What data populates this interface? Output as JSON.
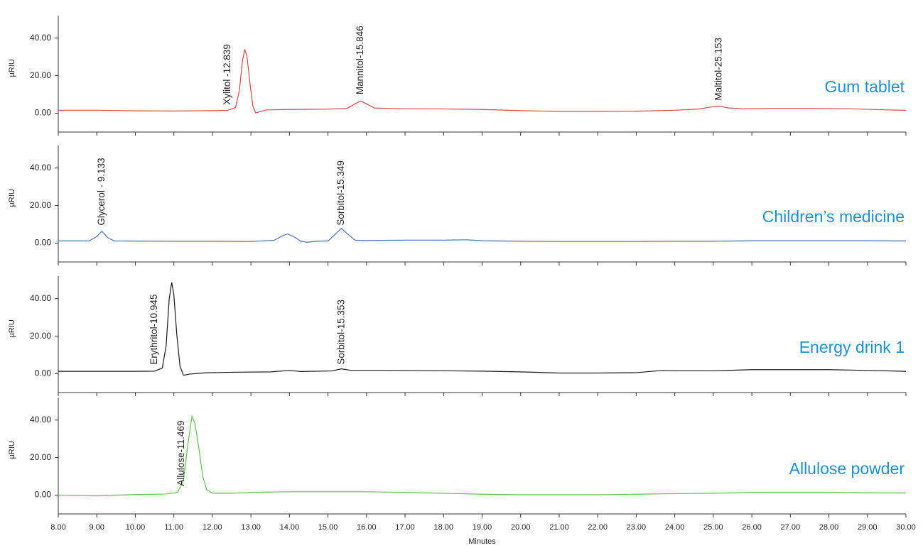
{
  "chart_data": [
    {
      "type": "line",
      "title": "Gum tablet",
      "y_label": "µRIU",
      "color": "#d9474a",
      "xlim": [
        8,
        30
      ],
      "ylim": [
        -10,
        52
      ],
      "yticks": [
        {
          "value": 40,
          "label": "40.00"
        },
        {
          "value": 20,
          "label": "20.00"
        },
        {
          "value": 0,
          "label": "0.00"
        }
      ],
      "x": [
        8,
        9,
        10,
        11,
        12,
        12.4,
        12.6,
        12.7,
        12.78,
        12.84,
        12.9,
        12.98,
        13.05,
        13.12,
        13.2,
        13.4,
        14,
        15,
        15.5,
        15.7,
        15.85,
        16,
        16.2,
        16.6,
        17,
        18,
        19,
        20,
        21,
        22,
        23,
        24,
        24.6,
        24.9,
        25.15,
        25.4,
        25.8,
        26.5,
        27.5,
        28.5,
        29.5,
        30
      ],
      "values": [
        1.6,
        1.6,
        1.3,
        1.2,
        1.4,
        1.6,
        3,
        12,
        28,
        34,
        30,
        15,
        4,
        0.2,
        0.6,
        1.8,
        2,
        2.2,
        2.6,
        5,
        6.5,
        5,
        2.8,
        2.6,
        2.4,
        2.3,
        2,
        1.4,
        1.0,
        1.0,
        1.1,
        1.6,
        2.2,
        3.2,
        3.8,
        2.8,
        2.4,
        2.6,
        2.6,
        2.4,
        1.8,
        1.6
      ],
      "annotations": [
        {
          "text": "Xylitol -12.839",
          "x": 12.4,
          "y": 4.5
        },
        {
          "text": "Mannitol-15.846",
          "x": 15.846,
          "y": 10
        },
        {
          "text": "Maltitol-25.153",
          "x": 25.153,
          "y": 6.8
        }
      ]
    },
    {
      "type": "line",
      "title": "Children’s medicine",
      "y_label": "µRIU",
      "color": "#4f6fb3",
      "xlim": [
        8,
        30
      ],
      "ylim": [
        -10,
        52
      ],
      "yticks": [
        {
          "value": 40,
          "label": "40.00"
        },
        {
          "value": 20,
          "label": "20.00"
        },
        {
          "value": 0,
          "label": "0.00"
        }
      ],
      "x": [
        8,
        8.8,
        9.0,
        9.13,
        9.28,
        9.45,
        10,
        11,
        12,
        13,
        13.6,
        13.85,
        13.95,
        14.1,
        14.3,
        14.45,
        14.7,
        15,
        15.15,
        15.35,
        15.5,
        15.7,
        16,
        17,
        18,
        18.6,
        19,
        20,
        21,
        22,
        23,
        24,
        25,
        26,
        27,
        28,
        29,
        30
      ],
      "values": [
        1.2,
        1.2,
        3.5,
        6.4,
        3,
        1.2,
        1.1,
        1.0,
        1.0,
        0.9,
        1.5,
        4.2,
        4.9,
        3.6,
        1.0,
        0.5,
        1.0,
        1.2,
        4,
        7.9,
        5,
        1.6,
        1.4,
        1.6,
        1.6,
        1.8,
        1.3,
        1.0,
        0.9,
        0.9,
        0.9,
        1.0,
        1.0,
        1.3,
        1.3,
        1.3,
        1.3,
        1.2
      ],
      "annotations": [
        {
          "text": "Glycerol - 9.133",
          "x": 9.133,
          "y": 9.4
        },
        {
          "text": "Sorbitol-15.349",
          "x": 15.349,
          "y": 9.4
        }
      ]
    },
    {
      "type": "line",
      "title": "Energy drink 1",
      "y_label": "µRIU",
      "color": "#1a1a1a",
      "xlim": [
        8,
        30
      ],
      "ylim": [
        -10,
        52
      ],
      "yticks": [
        {
          "value": 40,
          "label": "40.00"
        },
        {
          "value": 20,
          "label": "20.00"
        },
        {
          "value": 0,
          "label": "0.00"
        }
      ],
      "x": [
        8,
        9,
        10,
        10.5,
        10.7,
        10.8,
        10.88,
        10.945,
        11.0,
        11.08,
        11.16,
        11.25,
        11.4,
        11.8,
        12.5,
        13.5,
        14,
        14.3,
        15.1,
        15.35,
        15.6,
        16.5,
        18,
        19,
        20,
        21,
        22,
        23,
        23.7,
        24,
        25,
        26,
        27,
        28,
        29,
        30
      ],
      "values": [
        1.3,
        1.3,
        1.3,
        1.4,
        3,
        15,
        40,
        48.7,
        42,
        20,
        4,
        -0.8,
        -0.2,
        0.5,
        0.8,
        1.0,
        1.8,
        1.2,
        1.5,
        2.6,
        1.8,
        1.8,
        1.6,
        1.4,
        1.0,
        0.4,
        0.4,
        0.6,
        1.8,
        1.6,
        1.6,
        2.2,
        2.2,
        2.2,
        1.8,
        1.3
      ],
      "annotations": [
        {
          "text": "Erythritol-10.945",
          "x": 10.5,
          "y": 4.9
        },
        {
          "text": "Sorbitol-15.353",
          "x": 15.353,
          "y": 4.9
        }
      ]
    },
    {
      "type": "line",
      "title": "Allulose powder",
      "y_label": "µRIU",
      "x_label": "Minutes",
      "color": "#66bb55",
      "xlim": [
        8,
        30
      ],
      "ylim": [
        -10,
        52
      ],
      "yticks": [
        {
          "value": 40,
          "label": "40.00"
        },
        {
          "value": 20,
          "label": "20.00"
        },
        {
          "value": 0,
          "label": "0.00"
        }
      ],
      "xticks": [
        {
          "value": 8,
          "label": "8.00"
        },
        {
          "value": 9,
          "label": "9.00"
        },
        {
          "value": 10,
          "label": "10.00"
        },
        {
          "value": 11,
          "label": "11.00"
        },
        {
          "value": 12,
          "label": "12.00"
        },
        {
          "value": 13,
          "label": "13.00"
        },
        {
          "value": 14,
          "label": "14.00"
        },
        {
          "value": 15,
          "label": "15.00"
        },
        {
          "value": 16,
          "label": "16.00"
        },
        {
          "value": 17,
          "label": "17.00"
        },
        {
          "value": 18,
          "label": "18.00"
        },
        {
          "value": 19,
          "label": "19.00"
        },
        {
          "value": 20,
          "label": "20.00"
        },
        {
          "value": 21,
          "label": "21.00"
        },
        {
          "value": 22,
          "label": "22.00"
        },
        {
          "value": 23,
          "label": "23.00"
        },
        {
          "value": 24,
          "label": "24.00"
        },
        {
          "value": 25,
          "label": "25.00"
        },
        {
          "value": 26,
          "label": "26.00"
        },
        {
          "value": 27,
          "label": "27.00"
        },
        {
          "value": 28,
          "label": "28.00"
        },
        {
          "value": 29,
          "label": "29.00"
        },
        {
          "value": 30,
          "label": "30.00"
        }
      ],
      "x": [
        8,
        9,
        10,
        10.8,
        11.1,
        11.25,
        11.35,
        11.47,
        11.55,
        11.65,
        11.75,
        11.85,
        12,
        12.5,
        13,
        14,
        15,
        16,
        17,
        18,
        19,
        20,
        21,
        22,
        23,
        24,
        25,
        26,
        27,
        28,
        29,
        30
      ],
      "values": [
        0,
        -0.3,
        0.3,
        0.6,
        1.5,
        8,
        25,
        42,
        38,
        25,
        10,
        3,
        1,
        1,
        1.5,
        1.8,
        1.8,
        1.8,
        1.5,
        1.0,
        0.5,
        0.2,
        0.2,
        0.2,
        0.5,
        0.8,
        1.0,
        1.5,
        1.5,
        1.5,
        1.3,
        1.2
      ],
      "annotations": [
        {
          "text": "Allulose-11.469",
          "x": 11.2,
          "y": 4.9
        }
      ]
    }
  ]
}
